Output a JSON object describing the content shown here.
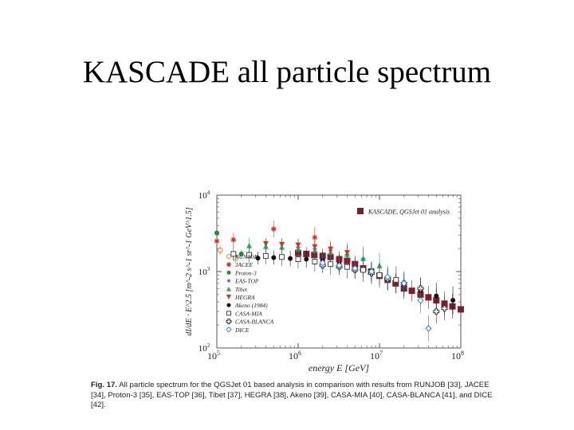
{
  "slide": {
    "title": "KASCADE all particle spectrum"
  },
  "figure": {
    "caption_label": "Fig. 17.",
    "caption_text": "All particle spectrum for the QGSJet 01 based analysis in comparison with results from RUNJOB [33], JACEE [34], Proton-3 [35], EAS-TOP [36], Tibet [37], HEGRA [38], Akeno [39], CASA-MIA [40], CASA-BLANCA [41], and DICE [42]."
  },
  "chart_data": {
    "type": "scatter",
    "xlabel": "energy E  [GeV]",
    "ylabel": "dI/dE · E^2.5  [m^-2 s^-1 sr^-1 GeV^1.5]",
    "xscale": "log",
    "yscale": "log",
    "xlim": [
      100000,
      100000000
    ],
    "ylim": [
      100,
      10000
    ],
    "x_ticks": [
      {
        "base": "10",
        "exp": "5",
        "value": 100000
      },
      {
        "base": "10",
        "exp": "6",
        "value": 1000000
      },
      {
        "base": "10",
        "exp": "7",
        "value": 10000000
      },
      {
        "base": "10",
        "exp": "8",
        "value": 100000000
      }
    ],
    "y_ticks": [
      {
        "base": "10",
        "exp": "2",
        "value": 100
      },
      {
        "base": "10",
        "exp": "3",
        "value": 1000
      },
      {
        "base": "10",
        "exp": "4",
        "value": 10000
      }
    ],
    "legend_position": "left",
    "series": [
      {
        "name": "KASCADE, QGSJet 01 analysis",
        "marker": "square-filled",
        "color": "#7a1f2b",
        "points": [
          [
            1000000.0,
            1750
          ],
          [
            1260000.0,
            1700
          ],
          [
            1580000.0,
            1650
          ],
          [
            2000000.0,
            1600
          ],
          [
            2500000.0,
            1550
          ],
          [
            3200000.0,
            1450
          ],
          [
            4000000.0,
            1380
          ],
          [
            5000000.0,
            1250
          ],
          [
            6300000.0,
            1100
          ],
          [
            7900000.0,
            1000
          ],
          [
            10000000.0,
            880
          ],
          [
            12600000.0,
            780
          ],
          [
            15800000.0,
            700
          ],
          [
            20000000.0,
            600
          ],
          [
            25000000.0,
            560
          ],
          [
            32000000.0,
            500
          ],
          [
            40000000.0,
            460
          ],
          [
            50000000.0,
            420
          ],
          [
            63000000.0,
            380
          ],
          [
            79000000.0,
            350
          ],
          [
            100000000.0,
            320
          ]
        ]
      },
      {
        "name": "RUNJOB",
        "marker": "circle-open",
        "color": "#e08a3c",
        "points": [
          [
            110000.0,
            1900
          ],
          [
            170000.0,
            1500
          ]
        ]
      },
      {
        "name": "JACEE",
        "marker": "asterisk",
        "color": "#c0392b",
        "points": [
          [
            100000.0,
            2500
          ],
          [
            160000.0,
            2600
          ],
          [
            500000.0,
            3600
          ],
          [
            1600000.0,
            2800
          ]
        ]
      },
      {
        "name": "Proton-3",
        "marker": "circle-filled",
        "color": "#1f8a3a",
        "points": [
          [
            100000.0,
            3200
          ],
          [
            200000.0,
            1700
          ]
        ]
      },
      {
        "name": "EAS-TOP",
        "marker": "star",
        "color": "#8e44ad",
        "points": [
          [
            1000000.0,
            2050
          ],
          [
            1600000.0,
            1950
          ],
          [
            2500000.0,
            1850
          ],
          [
            4000000.0,
            1650
          ],
          [
            6300000.0,
            1450
          ]
        ]
      },
      {
        "name": "Tibet",
        "marker": "triangle-up-filled",
        "color": "#27ae60",
        "points": [
          [
            250000.0,
            2200
          ],
          [
            400000.0,
            2150
          ],
          [
            630000.0,
            2100
          ],
          [
            1000000.0,
            2000
          ],
          [
            1600000.0,
            1900
          ],
          [
            2500000.0,
            1800
          ],
          [
            4000000.0,
            1700
          ],
          [
            6300000.0,
            1500
          ],
          [
            10000000.0,
            1200
          ]
        ]
      },
      {
        "name": "HEGRA",
        "marker": "triangle-down-filled",
        "color": "#c0392b",
        "points": [
          [
            400000.0,
            2300
          ],
          [
            630000.0,
            2250
          ],
          [
            1000000.0,
            2200
          ],
          [
            1600000.0,
            2100
          ],
          [
            2500000.0,
            1950
          ],
          [
            4000000.0,
            1750
          ]
        ]
      },
      {
        "name": "Akeno (1984)",
        "marker": "circle-filled",
        "color": "#111111",
        "points": [
          [
            320000.0,
            1500
          ],
          [
            500000.0,
            1520
          ],
          [
            800000.0,
            1480
          ],
          [
            1260000.0,
            1450
          ],
          [
            2000000.0,
            1400
          ],
          [
            3200000.0,
            1250
          ],
          [
            5000000.0,
            1100
          ],
          [
            8000000.0,
            950
          ],
          [
            12600000.0,
            800
          ],
          [
            20000000.0,
            680
          ],
          [
            32000000.0,
            560
          ],
          [
            50000000.0,
            480
          ],
          [
            80000000.0,
            420
          ]
        ]
      },
      {
        "name": "CASA-MIA",
        "marker": "square-open",
        "color": "#444444",
        "points": [
          [
            160000.0,
            1700
          ],
          [
            250000.0,
            1650
          ],
          [
            400000.0,
            1600
          ],
          [
            630000.0,
            1550
          ],
          [
            1000000.0,
            1450
          ],
          [
            1600000.0,
            1350
          ],
          [
            2500000.0,
            1250
          ],
          [
            4000000.0,
            1150
          ],
          [
            6300000.0,
            1050
          ],
          [
            10000000.0,
            900
          ],
          [
            16000000.0,
            780
          ]
        ]
      },
      {
        "name": "CASA-BLANCA",
        "marker": "cross-open",
        "color": "#333333",
        "points": [
          [
            2000000.0,
            1200
          ],
          [
            3200000.0,
            1150
          ],
          [
            5000000.0,
            1050
          ],
          [
            8000000.0,
            950
          ],
          [
            12600000.0,
            800
          ],
          [
            20000000.0,
            700
          ],
          [
            32000000.0,
            600
          ],
          [
            50000000.0,
            300
          ],
          [
            63000000.0,
            330
          ]
        ]
      },
      {
        "name": "DICE",
        "marker": "diamond-open",
        "color": "#2e86c1",
        "points": [
          [
            2000000.0,
            1300
          ],
          [
            3200000.0,
            1200
          ],
          [
            5000000.0,
            1100
          ],
          [
            8000000.0,
            1000
          ],
          [
            12600000.0,
            850
          ],
          [
            20000000.0,
            700
          ],
          [
            32000000.0,
            420
          ],
          [
            40000000.0,
            180
          ]
        ]
      }
    ]
  }
}
